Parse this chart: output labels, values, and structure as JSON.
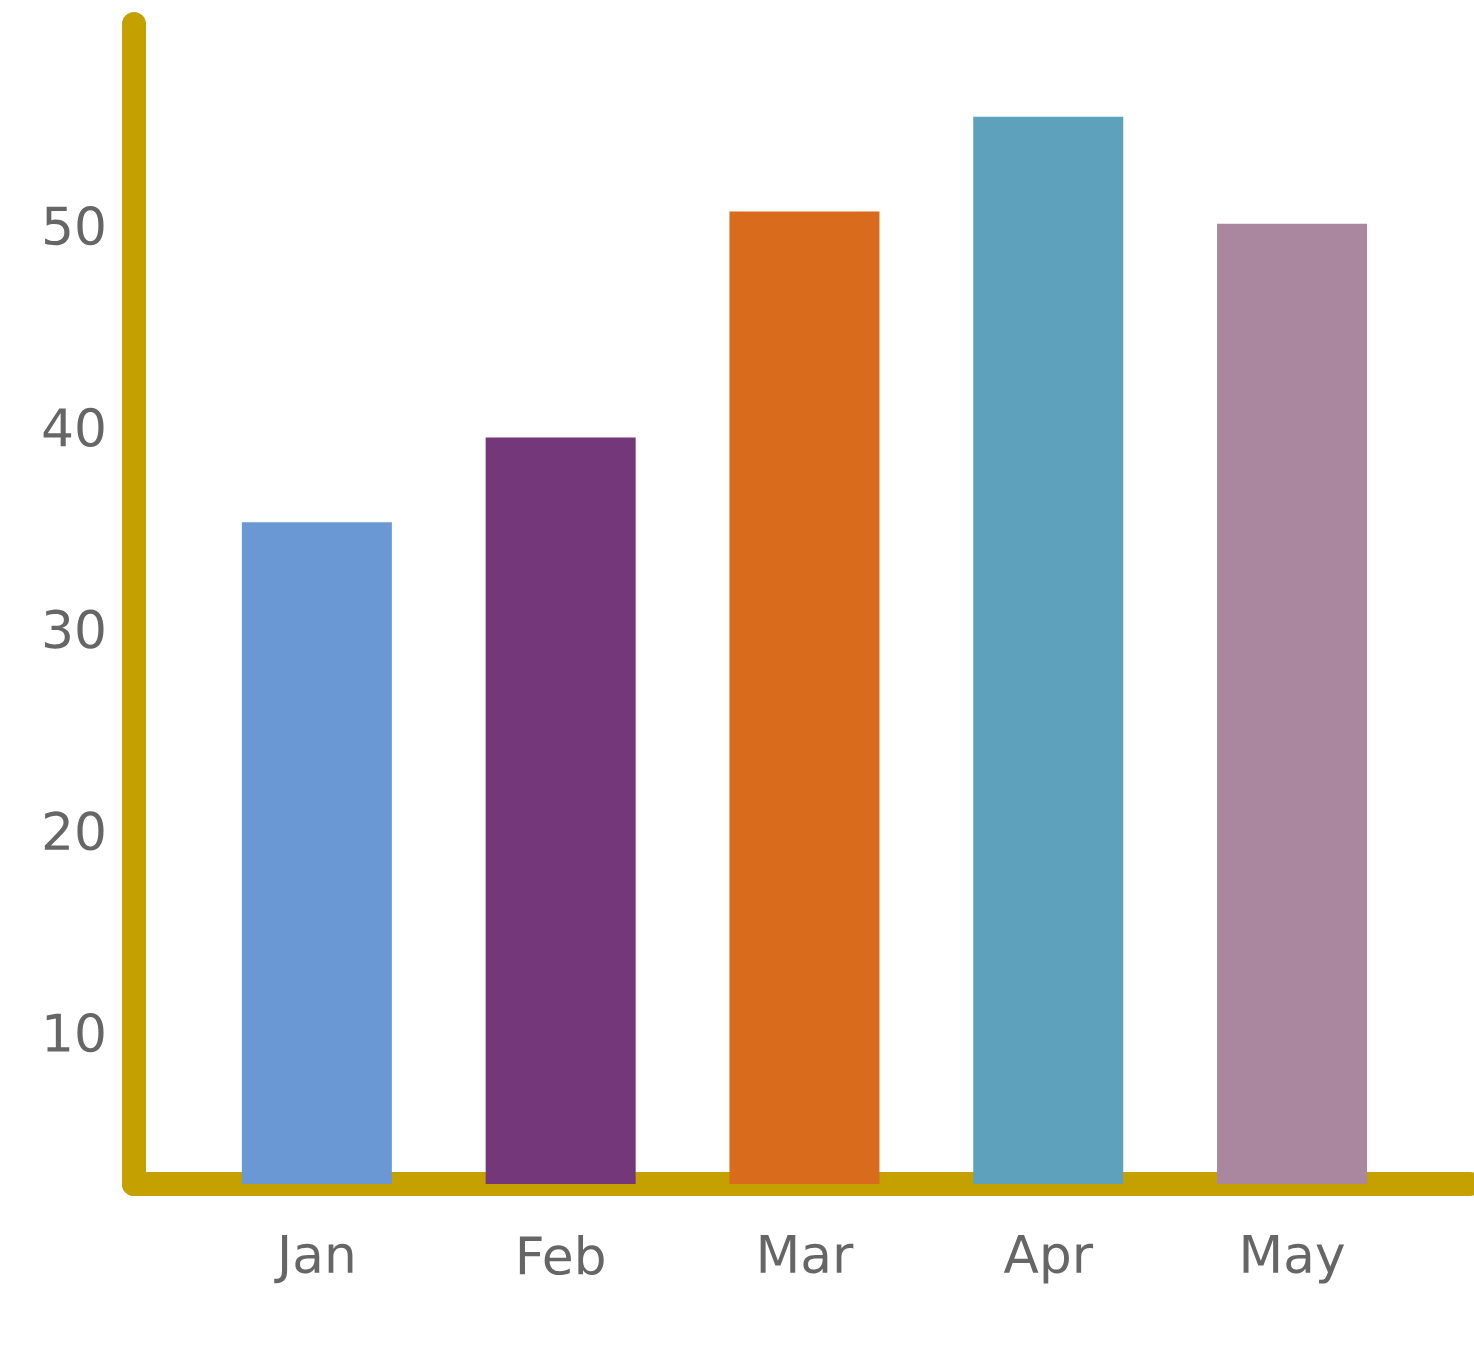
{
  "chart_data": {
    "type": "bar",
    "categories": [
      "Jan",
      "Feb",
      "Mar",
      "Apr",
      "May"
    ],
    "values": [
      35.3,
      39.5,
      50.7,
      55.4,
      50.1
    ],
    "colors": [
      "#6a98d4",
      "#74387a",
      "#d86b1c",
      "#5ea1bc",
      "#ab869f"
    ],
    "ylim": [
      2.5,
      60
    ],
    "yticks": [
      10,
      20,
      30,
      40,
      50
    ]
  }
}
